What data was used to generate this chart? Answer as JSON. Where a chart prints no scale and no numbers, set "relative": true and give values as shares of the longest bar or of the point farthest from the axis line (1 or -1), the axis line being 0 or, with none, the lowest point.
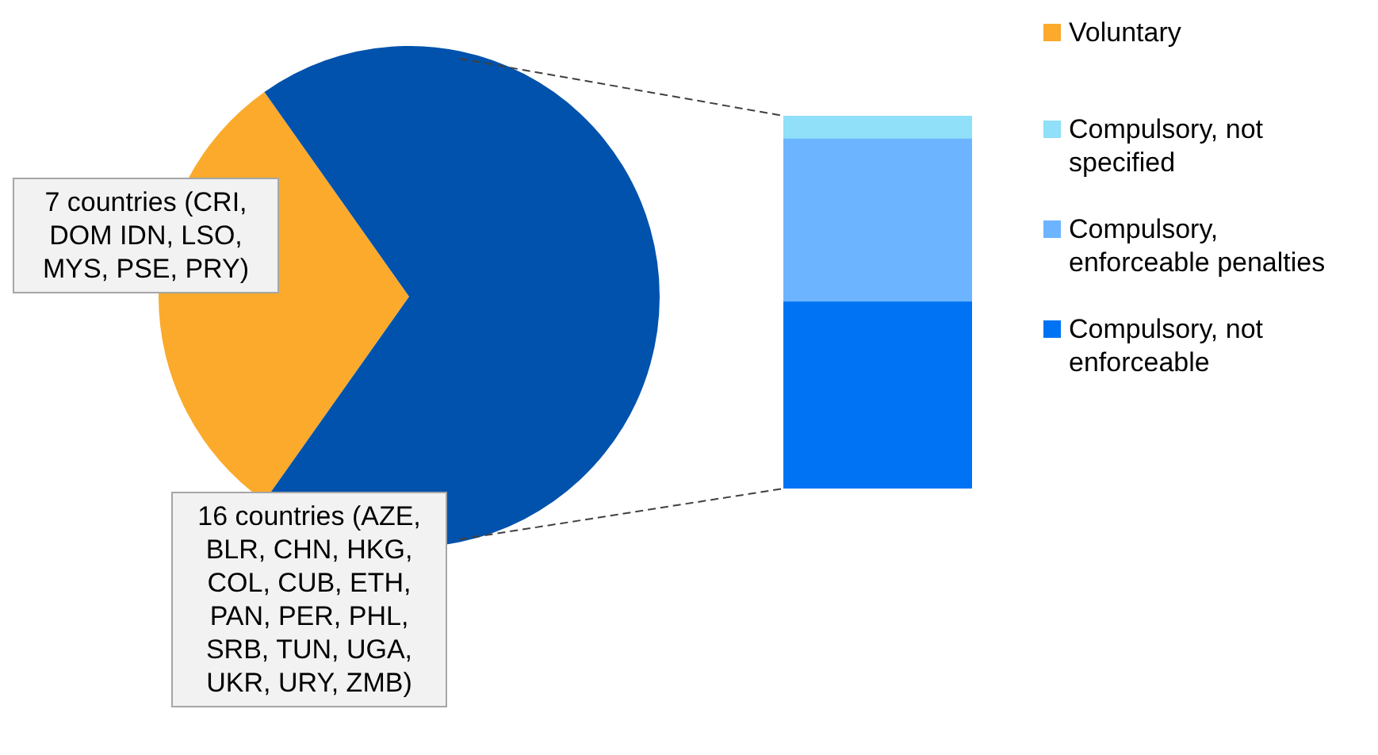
{
  "chart_data": [
    {
      "type": "pie",
      "categories": [
        "Voluntary",
        null
      ],
      "values": [
        30.4,
        69.6
      ],
      "colors": [
        "#fbaa2b",
        "#0052ac"
      ],
      "legend": "right",
      "annotations": [
        "7 countries (CRI, DOM IDN, LSO, MYS, PSE, PRY)",
        "16 countries (AZE, BLR, CHN, HKG, COL, CUB, ETH, PAN, PER, PHL, SRB, TUN, UGA, UKR, URY, ZMB)"
      ]
    },
    {
      "type": "bar",
      "stacked": true,
      "relative": true,
      "categories": [
        null
      ],
      "legend": "right",
      "series": [
        {
          "name": "Compulsory, not enforceable",
          "color": "#0073f5",
          "values": [
            0.5
          ]
        },
        {
          "name": "Compulsory, enforceable penalties",
          "color": "#6cb4ff",
          "values": [
            0.4375
          ]
        },
        {
          "name": "Compulsory, not specified",
          "color": "#8fe0f8",
          "values": [
            0.0625
          ]
        }
      ]
    }
  ]
}
